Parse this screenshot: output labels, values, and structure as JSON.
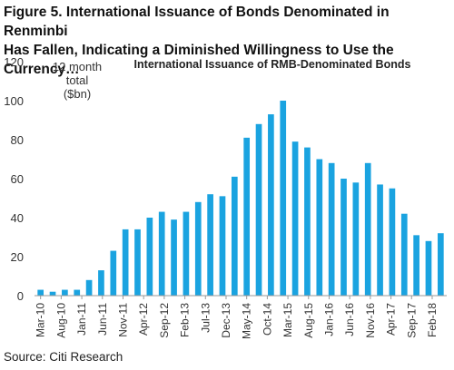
{
  "figure": {
    "title_line1": "Figure 5. International Issuance of Bonds Denominated in Renminbi",
    "title_line2": "Has Fallen, Indicating a Diminished Willingness to Use the Currency…",
    "source": "Source: Citi Research"
  },
  "chart_data": {
    "type": "bar",
    "title": "International Issuance of RMB-Denominated Bonds",
    "ylabel_lines": [
      "12 month",
      "total",
      "($bn)"
    ],
    "ylim": [
      0,
      120
    ],
    "yticks": [
      0,
      20,
      40,
      60,
      80,
      100,
      120
    ],
    "grid": false,
    "bar_color": "#1aa3e0",
    "xtick_labels": [
      "Mar-10",
      "Aug-10",
      "Jan-11",
      "Jun-11",
      "Nov-11",
      "Apr-12",
      "Sep-12",
      "Feb-13",
      "Jul-13",
      "Dec-13",
      "May-14",
      "Oct-14",
      "Mar-15",
      "Aug-15",
      "Jan-16",
      "Jun-16",
      "Nov-16",
      "Apr-17",
      "Sep-17",
      "Feb-18"
    ],
    "series": [
      {
        "values": [
          3,
          2,
          3,
          3,
          8,
          13,
          23,
          34,
          34,
          40,
          43,
          39,
          43,
          48,
          52,
          51,
          61,
          81,
          88,
          93,
          100,
          79,
          76,
          70,
          68,
          60,
          58,
          68,
          57,
          55,
          42,
          31,
          28,
          32
        ]
      }
    ]
  }
}
